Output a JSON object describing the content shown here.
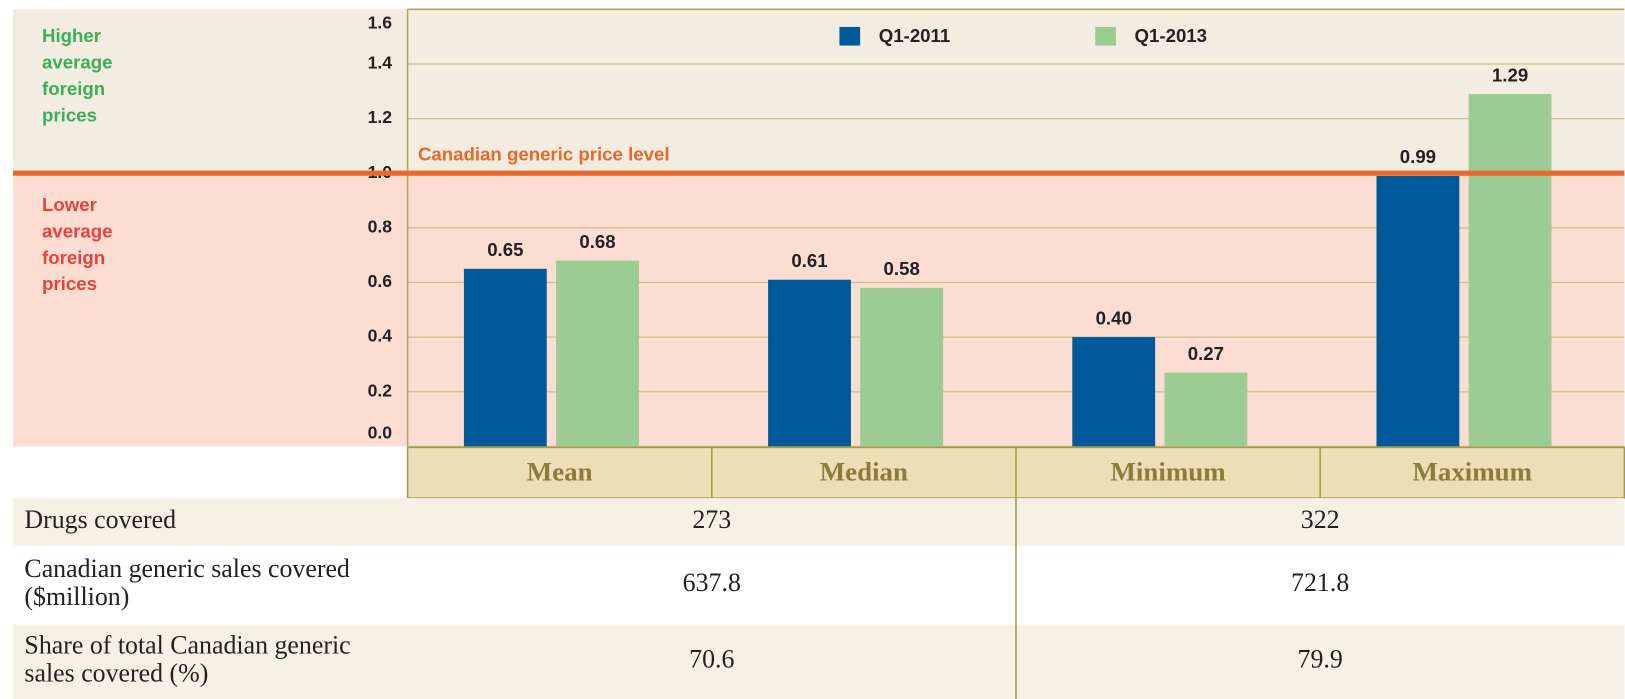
{
  "chart_data": {
    "type": "bar",
    "categories": [
      "Mean",
      "Median",
      "Minimum",
      "Maximum"
    ],
    "series": [
      {
        "name": "Q1-2011",
        "color": "#00599b",
        "values": [
          0.65,
          0.61,
          0.4,
          0.99
        ],
        "value_labels": [
          "0.65",
          "0.61",
          "0.40",
          "0.99"
        ]
      },
      {
        "name": "Q1-2013",
        "color": "#9ccb94",
        "values": [
          0.68,
          0.58,
          0.27,
          1.29
        ]
      }
    ],
    "ylim": [
      0,
      1.6
    ],
    "yticks": [
      {
        "value": 0,
        "label": "0.0"
      },
      0.2,
      0.4,
      0.6,
      0.8,
      {
        "value": 1,
        "label": "1.0"
      },
      1.2,
      1.4,
      1.6
    ],
    "grid": true,
    "legend": "top",
    "reference_line": {
      "value": 1,
      "label": "Canadian generic price level",
      "color": "#e8692a"
    },
    "annotations": {
      "above": {
        "lines": [
          "Higher",
          "average",
          "foreign",
          "prices"
        ],
        "color": "#3aae5a"
      },
      "below": {
        "lines": [
          "Lower",
          "average",
          "foreign",
          "prices"
        ],
        "color": "#e8423f"
      }
    }
  },
  "table": {
    "rows": [
      {
        "label": [
          "Drugs covered"
        ],
        "values": [
          273,
          322
        ]
      },
      {
        "label": [
          "Canadian generic sales covered",
          "($million)"
        ],
        "values": [
          637.8,
          721.8
        ]
      },
      {
        "label": [
          "Share of total Canadian generic",
          "sales covered (%)"
        ],
        "values": [
          70.6,
          79.9
        ]
      }
    ]
  }
}
